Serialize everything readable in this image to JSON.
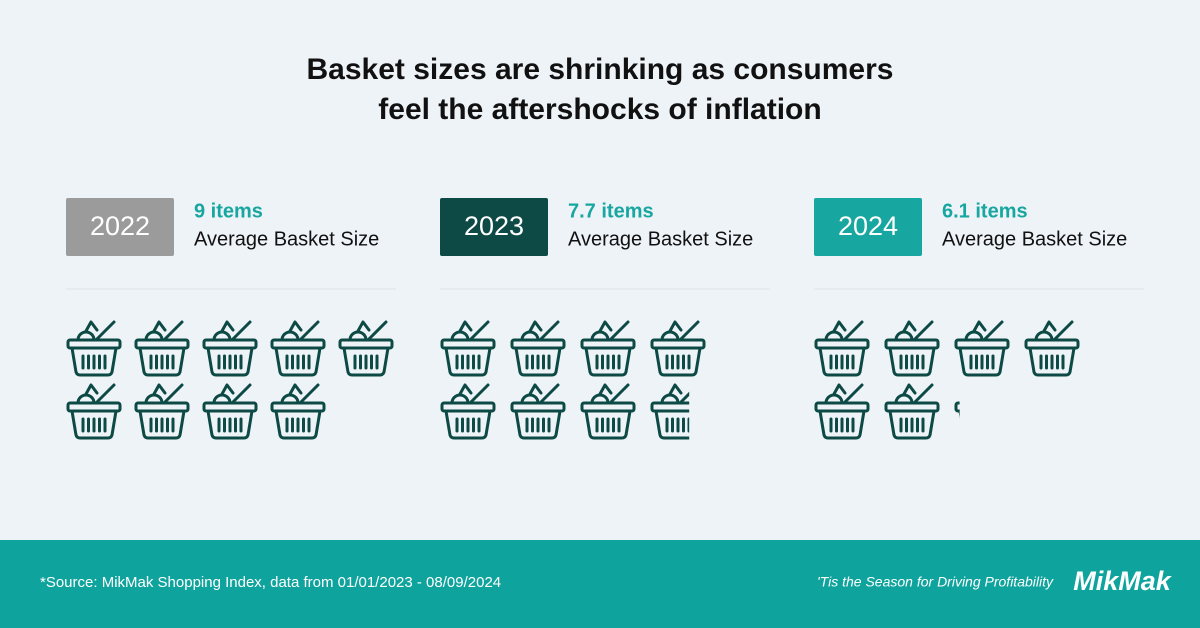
{
  "chart_data": {
    "type": "pictograph",
    "title": "Basket sizes are shrinking as consumers feel the aftershocks of inflation",
    "categories": [
      "2022",
      "2023",
      "2024"
    ],
    "values": [
      9,
      7.7,
      6.1
    ],
    "value_labels": [
      "9 items",
      "7.7 items",
      "6.1 items"
    ],
    "value_caption": "Average Basket Size",
    "colors": [
      "#9b9b9b",
      "#0d4a45",
      "#17a6a0"
    ],
    "icon_color": "#0d4a45",
    "value_label_color": "#17a6a0"
  },
  "footer": {
    "source": "*Source: MikMak Shopping Index, data from 01/01/2023 - 08/09/2024",
    "tagline": "'Tis the Season for Driving Profitability",
    "logo": "MikMak"
  }
}
